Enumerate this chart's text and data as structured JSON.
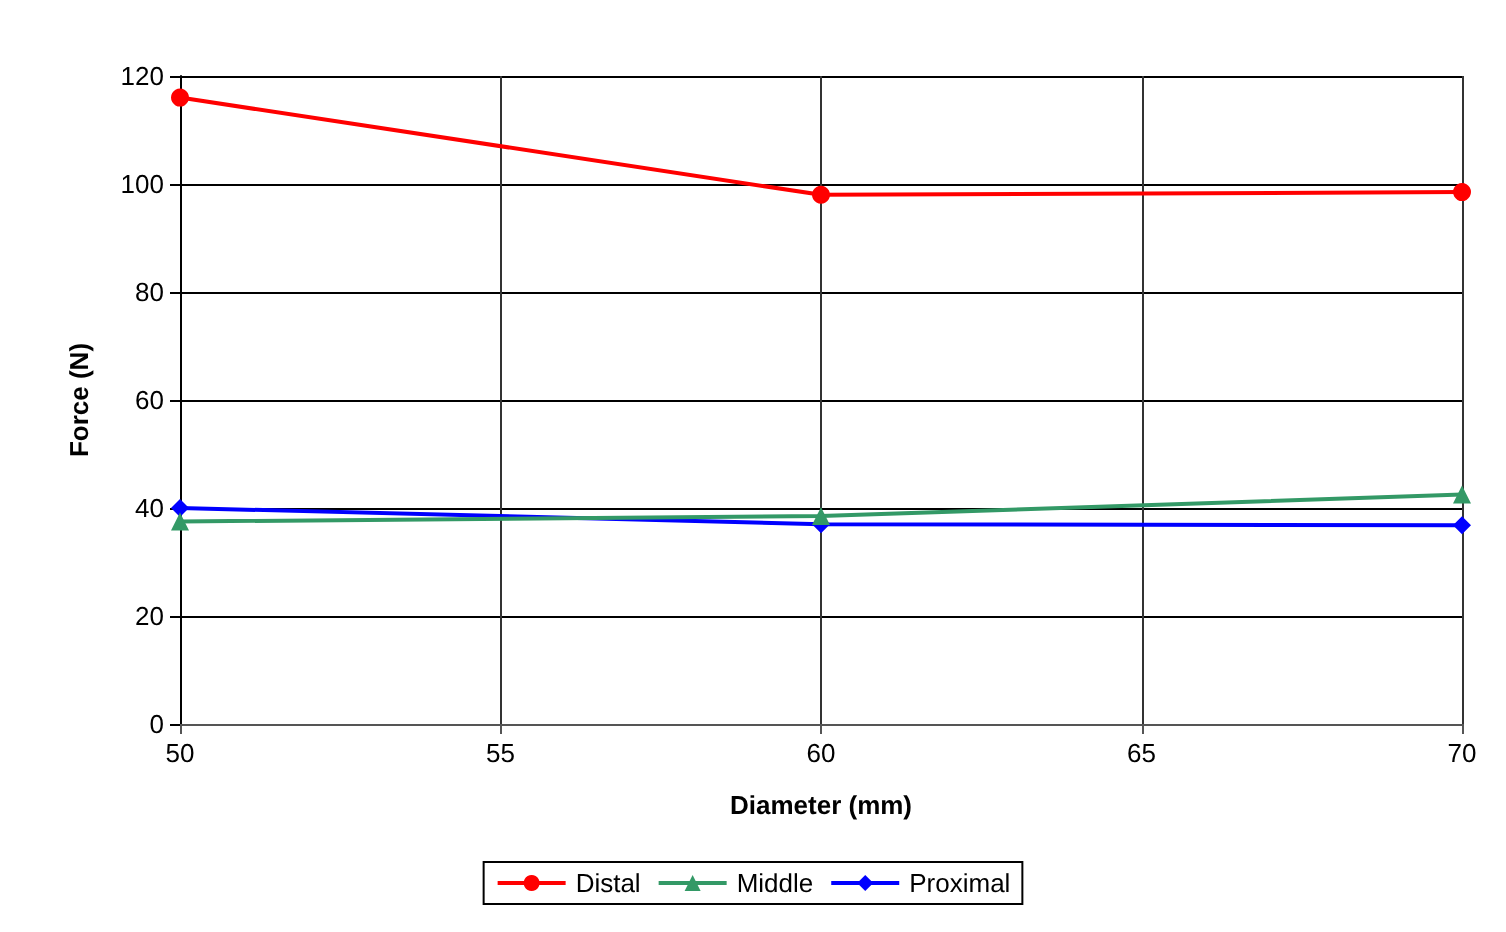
{
  "chart_data": {
    "type": "line",
    "xlabel": "Diameter (mm)",
    "ylabel": "Force (N)",
    "x": [
      50,
      60,
      70
    ],
    "series": [
      {
        "name": "Distal",
        "color": "#ff0000",
        "marker": "circle",
        "values": [
          116,
          98,
          98.5
        ]
      },
      {
        "name": "Middle",
        "color": "#339966",
        "marker": "triangle",
        "values": [
          37.5,
          38.5,
          42.5
        ]
      },
      {
        "name": "Proximal",
        "color": "#0000ff",
        "marker": "diamond",
        "values": [
          40,
          37,
          36.8
        ]
      }
    ],
    "xlim": [
      50,
      70
    ],
    "xticks": [
      50,
      55,
      60,
      65,
      70
    ],
    "ylim": [
      0,
      120
    ],
    "yticks": [
      0,
      20,
      40,
      60,
      80,
      100,
      120
    ],
    "grid": true,
    "legend": "bottom",
    "line_style": "solid"
  }
}
